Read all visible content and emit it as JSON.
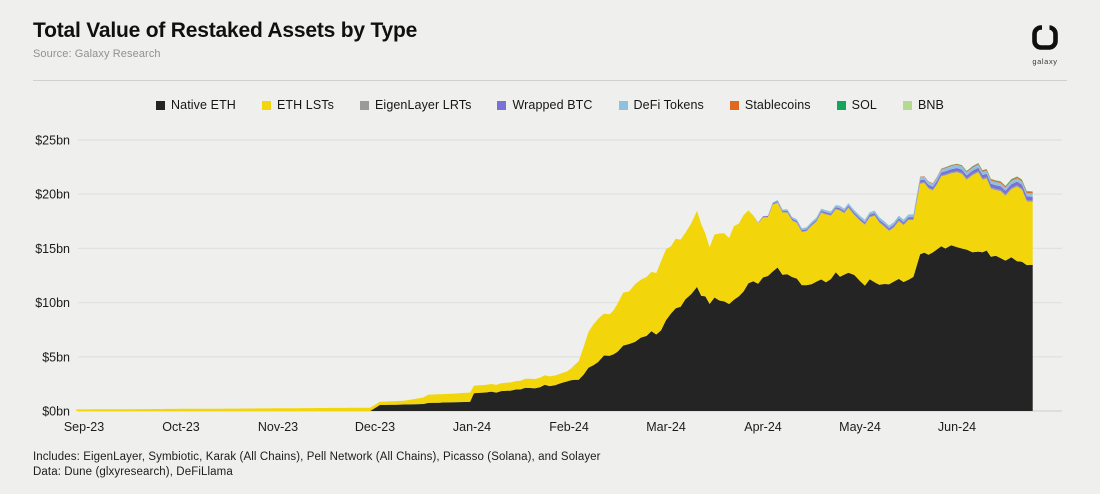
{
  "header": {
    "title": "Total Value of Restaked Assets by Type",
    "source": "Source: Galaxy Research",
    "logo_label": "galaxy"
  },
  "footnotes": {
    "line1": "Includes: EigenLayer, Symbiotic, Karak (All Chains), Pell Network (All Chains), Picasso (Solana), and Solayer",
    "line2": "Data: Dune (glxyresearch), DeFiLlama"
  },
  "colors": {
    "background": "#efefee",
    "gridline": "#e2e2e0",
    "divider": "#d0d0ce",
    "axis_text": "#1c1c1c"
  },
  "chart_data": {
    "type": "area",
    "stacked": true,
    "title": "Total Value of Restaked Assets by Type",
    "unit": "$bn",
    "x_axis": {
      "tick_labels": [
        "Sep-23",
        "Oct-23",
        "Nov-23",
        "Dec-23",
        "Jan-24",
        "Feb-24",
        "Mar-24",
        "Apr-24",
        "May-24",
        "Jun-24"
      ],
      "range_months": [
        -0.08,
        9.78
      ],
      "note": "x values are months since Sep-2023 (0 = Sep-23)"
    },
    "y_axis": {
      "tick_labels": [
        "$0bn",
        "$5bn",
        "$10bn",
        "$15bn",
        "$20bn",
        "$25bn"
      ],
      "tick_values": [
        0,
        5,
        10,
        15,
        20,
        25
      ],
      "min": 0,
      "max": 25,
      "grid": true
    },
    "legend_position": "top-center",
    "x": [
      -0.08,
      0,
      0.5,
      1.0,
      1.5,
      2.0,
      2.5,
      2.95,
      3.05,
      3.3,
      3.5,
      3.55,
      3.8,
      3.98,
      4.02,
      4.2,
      4.4,
      4.6,
      4.8,
      4.98,
      5.02,
      5.1,
      5.2,
      5.3,
      5.42,
      5.5,
      5.62,
      5.8,
      5.9,
      6.0,
      6.1,
      6.2,
      6.32,
      6.45,
      6.55,
      6.65,
      6.8,
      6.9,
      7.0,
      7.15,
      7.3,
      7.45,
      7.6,
      7.75,
      7.88,
      8.0,
      8.15,
      8.3,
      8.45,
      8.55,
      8.62,
      8.75,
      8.88,
      9.0,
      9.1,
      9.22,
      9.35,
      9.5,
      9.62,
      9.72,
      9.78
    ],
    "series": [
      {
        "name": "Native ETH",
        "color": "#242424",
        "values": [
          0,
          0,
          0,
          0,
          0,
          0,
          0,
          0,
          0.55,
          0.6,
          0.65,
          0.75,
          0.8,
          0.85,
          1.6,
          1.75,
          1.9,
          2.1,
          2.4,
          2.65,
          2.75,
          3.0,
          4.0,
          4.7,
          5.3,
          5.6,
          6.1,
          6.9,
          7.3,
          8.2,
          9.3,
          10.4,
          11.2,
          10.1,
          10.3,
          9.8,
          11.3,
          11.9,
          12.2,
          13.1,
          12.2,
          11.5,
          11.9,
          12.5,
          13.0,
          11.7,
          11.9,
          11.8,
          12.1,
          12.3,
          14.5,
          14.8,
          15.0,
          15.2,
          15.0,
          14.9,
          14.4,
          14.0,
          13.9,
          13.7,
          13.5
        ]
      },
      {
        "name": "ETH LSTs",
        "color": "#f2d60b",
        "values": [
          0.15,
          0.15,
          0.17,
          0.2,
          0.22,
          0.25,
          0.28,
          0.3,
          0.3,
          0.35,
          0.6,
          0.75,
          0.8,
          0.85,
          0.7,
          0.7,
          0.75,
          0.85,
          0.9,
          0.95,
          1.05,
          1.7,
          3.3,
          3.9,
          4.0,
          4.4,
          5.1,
          5.5,
          5.9,
          6.3,
          6.2,
          6.1,
          7.0,
          5.5,
          6.4,
          6.2,
          7.3,
          6.2,
          5.5,
          6.1,
          5.2,
          5.0,
          6.1,
          5.9,
          6.0,
          5.3,
          6.0,
          5.1,
          5.4,
          5.2,
          6.7,
          5.9,
          6.6,
          7.2,
          6.7,
          7.1,
          6.4,
          6.3,
          6.6,
          6.1,
          5.8
        ]
      },
      {
        "name": "EigenLayer LRTs",
        "color": "#9a9a9a",
        "values": [
          0,
          0,
          0,
          0,
          0,
          0,
          0,
          0,
          0,
          0,
          0,
          0,
          0,
          0,
          0,
          0,
          0,
          0,
          0,
          0,
          0,
          0,
          0,
          0,
          0,
          0,
          0,
          0,
          0,
          0,
          0,
          0,
          0,
          0,
          0,
          0,
          0,
          0,
          0.04,
          0.05,
          0.06,
          0.06,
          0.07,
          0.07,
          0.08,
          0.08,
          0.08,
          0.09,
          0.09,
          0.09,
          0.1,
          0.1,
          0.11,
          0.11,
          0.11,
          0.11,
          0.12,
          0.12,
          0.12,
          0.12,
          0.12
        ]
      },
      {
        "name": "Wrapped BTC",
        "color": "#7a71d6",
        "values": [
          0,
          0,
          0,
          0,
          0,
          0,
          0,
          0,
          0,
          0,
          0,
          0,
          0,
          0,
          0,
          0,
          0,
          0,
          0,
          0,
          0,
          0,
          0,
          0,
          0,
          0,
          0,
          0,
          0,
          0,
          0,
          0,
          0,
          0,
          0,
          0,
          0,
          0,
          0.08,
          0.1,
          0.12,
          0.12,
          0.13,
          0.14,
          0.15,
          0.16,
          0.17,
          0.17,
          0.18,
          0.18,
          0.22,
          0.24,
          0.26,
          0.28,
          0.28,
          0.3,
          0.32,
          0.33,
          0.34,
          0.35,
          0.35
        ]
      },
      {
        "name": "DeFi Tokens",
        "color": "#8fc1de",
        "values": [
          0,
          0,
          0,
          0,
          0,
          0,
          0,
          0,
          0,
          0,
          0,
          0,
          0,
          0,
          0,
          0,
          0,
          0,
          0,
          0,
          0,
          0,
          0,
          0,
          0,
          0,
          0,
          0,
          0,
          0,
          0,
          0,
          0,
          0,
          0,
          0,
          0,
          0,
          0,
          0.1,
          0.15,
          0.18,
          0.2,
          0.2,
          0.22,
          0.22,
          0.23,
          0.24,
          0.24,
          0.25,
          0.28,
          0.28,
          0.3,
          0.3,
          0.3,
          0.3,
          0.3,
          0.3,
          0.3,
          0.3,
          0.3
        ]
      },
      {
        "name": "Stablecoins",
        "color": "#e0681f",
        "values": [
          0,
          0,
          0,
          0,
          0,
          0,
          0,
          0,
          0,
          0,
          0,
          0,
          0,
          0,
          0,
          0,
          0,
          0,
          0,
          0,
          0,
          0,
          0,
          0,
          0,
          0,
          0,
          0,
          0,
          0,
          0,
          0,
          0,
          0,
          0,
          0,
          0,
          0,
          0,
          0,
          0,
          0,
          0,
          0,
          0,
          0,
          0,
          0,
          0,
          0,
          0.04,
          0.05,
          0.06,
          0.07,
          0.08,
          0.09,
          0.1,
          0.1,
          0.11,
          0.12,
          0.12
        ]
      },
      {
        "name": "SOL",
        "color": "#17a45c",
        "values": [
          0,
          0,
          0,
          0,
          0,
          0,
          0,
          0,
          0,
          0,
          0,
          0,
          0,
          0,
          0,
          0,
          0,
          0,
          0,
          0,
          0,
          0,
          0,
          0,
          0,
          0,
          0,
          0,
          0,
          0,
          0,
          0,
          0,
          0,
          0,
          0,
          0,
          0,
          0,
          0,
          0,
          0,
          0,
          0,
          0,
          0,
          0,
          0,
          0,
          0,
          0,
          0,
          0.02,
          0.03,
          0.03,
          0.04,
          0.04,
          0.05,
          0.05,
          0.05,
          0.05
        ]
      },
      {
        "name": "BNB",
        "color": "#b4da90",
        "values": [
          0,
          0,
          0,
          0,
          0,
          0,
          0,
          0,
          0,
          0,
          0,
          0,
          0,
          0,
          0,
          0,
          0,
          0,
          0,
          0,
          0,
          0,
          0,
          0,
          0,
          0,
          0,
          0,
          0,
          0,
          0,
          0,
          0,
          0,
          0,
          0,
          0,
          0,
          0,
          0,
          0,
          0,
          0,
          0,
          0,
          0,
          0,
          0,
          0,
          0,
          0,
          0,
          0,
          0,
          0,
          0,
          0.02,
          0.03,
          0.03,
          0.03,
          0.04
        ]
      }
    ]
  }
}
